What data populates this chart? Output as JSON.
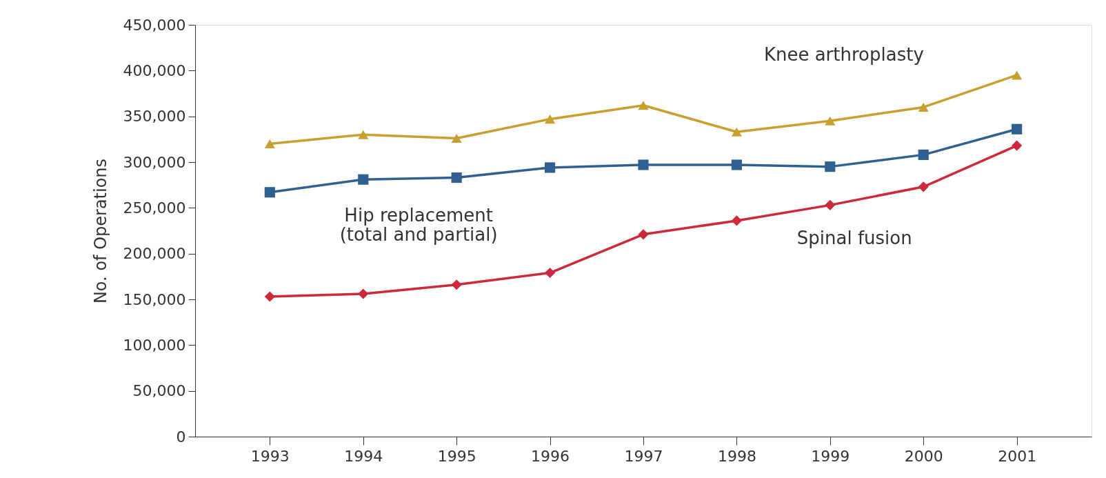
{
  "chart_data": {
    "type": "line",
    "ylabel": "No. of Operations",
    "categories": [
      "1993",
      "1994",
      "1995",
      "1996",
      "1997",
      "1998",
      "1999",
      "2000",
      "2001"
    ],
    "series": [
      {
        "name": "Knee arthroplasty",
        "color": "#c9a030",
        "marker": "triangle",
        "values": [
          320000,
          330000,
          326000,
          347000,
          362000,
          333000,
          345000,
          360000,
          395000
        ]
      },
      {
        "name": "Hip replacement\n(total and partial)",
        "color": "#2f6090",
        "marker": "square",
        "values": [
          267000,
          281000,
          283000,
          294000,
          297000,
          297000,
          295000,
          308000,
          336000
        ]
      },
      {
        "name": "Spinal fusion",
        "color": "#cc2a3a",
        "marker": "diamond",
        "values": [
          153000,
          156000,
          166000,
          179000,
          221000,
          236000,
          253000,
          273000,
          318000
        ]
      }
    ],
    "ylim": [
      0,
      450000
    ],
    "yticks": [
      0,
      {
        "value": 50000,
        "label": "50,000"
      },
      {
        "value": 100000,
        "label": "100,000"
      },
      {
        "value": 150000,
        "label": "150,000"
      },
      {
        "value": 200000,
        "label": "200,000"
      },
      {
        "value": 250000,
        "label": "250,000"
      },
      {
        "value": 300000,
        "label": "300,000"
      },
      {
        "value": 350000,
        "label": "350,000"
      },
      {
        "value": 400000,
        "label": "400,000"
      },
      {
        "value": 450000,
        "label": "450,000"
      }
    ],
    "grid": false,
    "legend": false,
    "line_style": "solid"
  }
}
